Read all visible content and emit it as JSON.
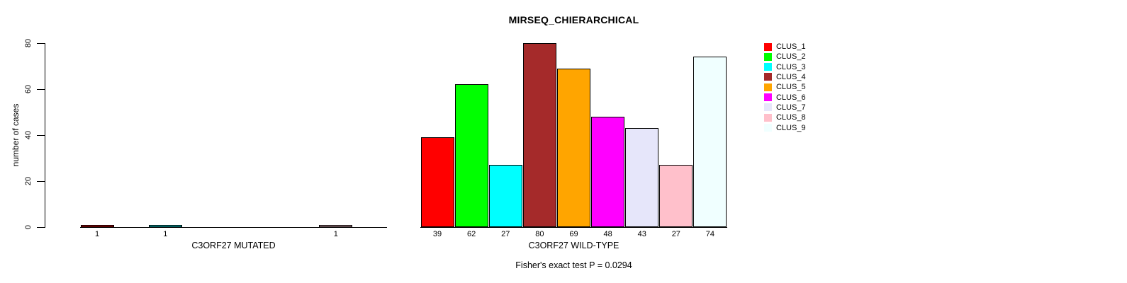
{
  "chart_data": {
    "type": "bar",
    "title": "MIRSEQ_CHIERARCHICAL",
    "ylabel": "number of cases",
    "ylim": [
      0,
      80
    ],
    "yticks": [
      0,
      20,
      40,
      60,
      80
    ],
    "grid": false,
    "legend_position": "right-top",
    "legend": [
      {
        "label": "CLUS_1",
        "color": "#FF0000"
      },
      {
        "label": "CLUS_2",
        "color": "#00FF00"
      },
      {
        "label": "CLUS_3",
        "color": "#00FFFF"
      },
      {
        "label": "CLUS_4",
        "color": "#A52A2A"
      },
      {
        "label": "CLUS_5",
        "color": "#FFA500"
      },
      {
        "label": "CLUS_6",
        "color": "#FF00FF"
      },
      {
        "label": "CLUS_7",
        "color": "#E6E6FA"
      },
      {
        "label": "CLUS_8",
        "color": "#FFC0CB"
      },
      {
        "label": "CLUS_9",
        "color": "#F0FFFF"
      }
    ],
    "groups": [
      {
        "xlabel": "C3ORF27 MUTATED",
        "values": [
          1,
          0,
          1,
          0,
          0,
          0,
          0,
          1,
          0
        ],
        "bar_labels": [
          "1",
          "",
          "1",
          "",
          "",
          "",
          "",
          "1",
          ""
        ]
      },
      {
        "xlabel": "C3ORF27 WILD-TYPE",
        "values": [
          39,
          62,
          27,
          80,
          69,
          48,
          43,
          27,
          74
        ],
        "bar_labels": [
          "39",
          "62",
          "27",
          "80",
          "69",
          "48",
          "43",
          "27",
          "74"
        ]
      }
    ],
    "footnote": "Fisher's exact test P = 0.0294"
  }
}
